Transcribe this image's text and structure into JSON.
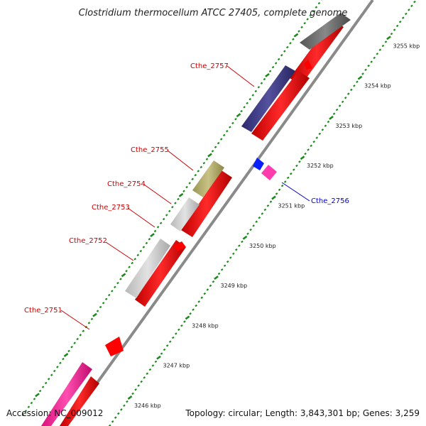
{
  "title": "Clostridium thermocellum ATCC 27405, complete genome",
  "footer": {
    "accession": "Accession: NC_009012",
    "topology": "Topology: circular; Length: 3,843,301 bp; Genes: 3,259"
  },
  "colors": {
    "backbone": "#8a8a8a",
    "forward_gene": "#ff0000",
    "tick": "#1a8a1a",
    "label_red": "#cc0000",
    "label_blue": "#0000cc"
  },
  "ticks": [
    {
      "kbp": 3246,
      "label": "3246 kbp"
    },
    {
      "kbp": 3247,
      "label": "3247 kbp"
    },
    {
      "kbp": 3248,
      "label": "3248 kbp"
    },
    {
      "kbp": 3249,
      "label": "3249 kbp"
    },
    {
      "kbp": 3250,
      "label": "3250 kbp"
    },
    {
      "kbp": 3251,
      "label": "3251 kbp"
    },
    {
      "kbp": 3252,
      "label": "3252 kbp"
    },
    {
      "kbp": 3253,
      "label": "3253 kbp"
    },
    {
      "kbp": 3254,
      "label": "3254 kbp"
    },
    {
      "kbp": 3255,
      "label": "3255 kbp"
    }
  ],
  "gene_labels": [
    {
      "name": "Cthe_2757",
      "color": "#cc0000"
    },
    {
      "name": "Cthe_2755",
      "color": "#cc0000"
    },
    {
      "name": "Cthe_2754",
      "color": "#cc0000"
    },
    {
      "name": "Cthe_2753",
      "color": "#cc0000"
    },
    {
      "name": "Cthe_2752",
      "color": "#cc0000"
    },
    {
      "name": "Cthe_2751",
      "color": "#cc0000"
    },
    {
      "name": "Cthe_2756",
      "color": "#0000cc"
    }
  ]
}
